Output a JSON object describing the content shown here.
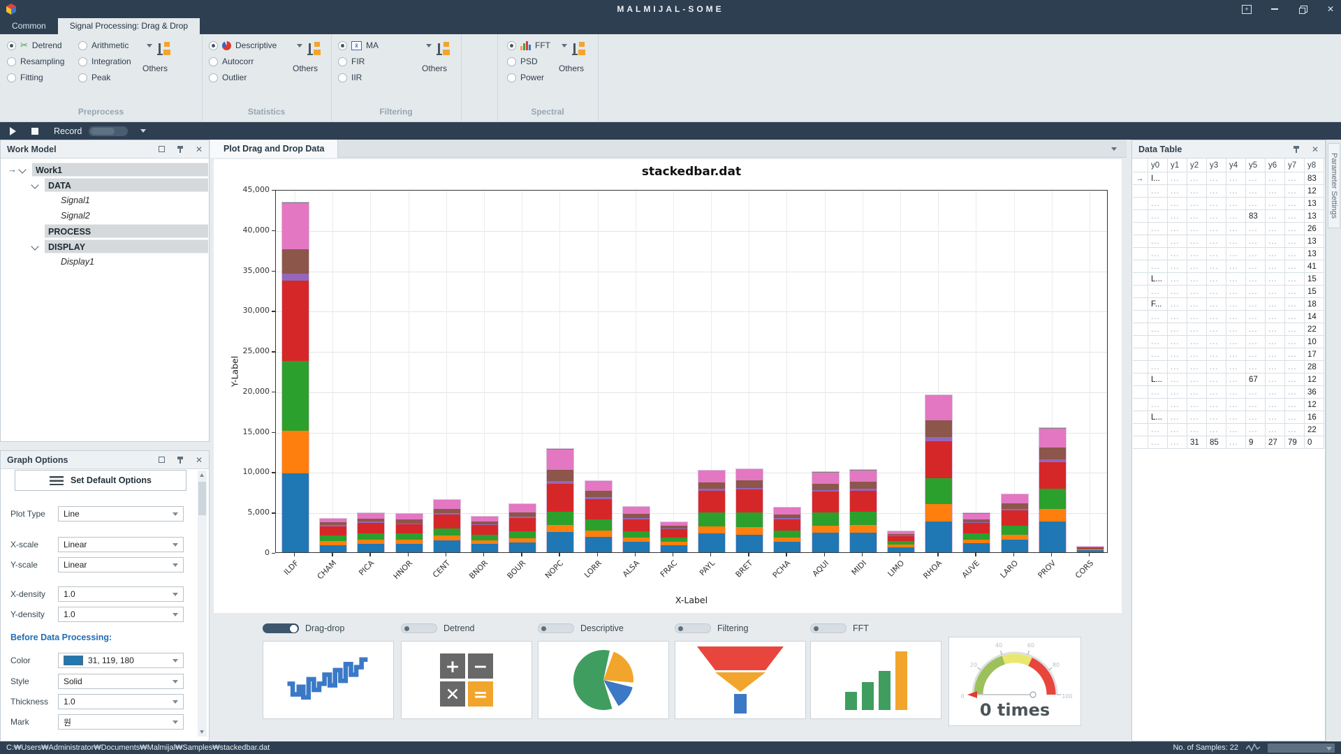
{
  "titlebar": {
    "title": "MALMIJAL-SOME"
  },
  "tabs": [
    {
      "label": "Common",
      "active": false
    },
    {
      "label": "Signal Processing: Drag & Drop",
      "active": true
    }
  ],
  "ribbon": {
    "preprocess": {
      "label": "Preprocess",
      "others": "Others",
      "items": [
        "Detrend",
        "Arithmetic",
        "Resampling",
        "Integration",
        "Fitting",
        "Peak"
      ],
      "selected": "Detrend"
    },
    "statistics": {
      "label": "Statistics",
      "others": "Others",
      "items": [
        "Descriptive",
        "Autocorr",
        "Outlier"
      ],
      "selected": "Descriptive"
    },
    "filtering": {
      "label": "Filtering",
      "others": "Others",
      "items": [
        "MA",
        "FIR",
        "IIR"
      ],
      "selected": "MA"
    },
    "spectral": {
      "label": "Spectral",
      "others": "Others",
      "items": [
        "FFT",
        "PSD",
        "Power"
      ],
      "selected": "FFT"
    }
  },
  "icons": {
    "detrend": "scissors-icon",
    "descriptive": "pie-icon",
    "ma": "x-bar-icon",
    "fft": "mini-bars-icon",
    "others": "flow-blocks-icon"
  },
  "record_bar": {
    "label": "Record",
    "toggle_on": false
  },
  "work_model": {
    "title": "Work Model",
    "tree": [
      {
        "label": "Work1",
        "bold": true,
        "indent": 0,
        "caret": true,
        "arrow": true
      },
      {
        "label": "DATA",
        "bold": true,
        "indent": 1,
        "caret": true
      },
      {
        "label": "Signal1",
        "italic": true,
        "indent": 2
      },
      {
        "label": "Signal2",
        "italic": true,
        "indent": 2
      },
      {
        "label": "PROCESS",
        "bold": true,
        "indent": 1
      },
      {
        "label": "DISPLAY",
        "bold": true,
        "indent": 1,
        "caret": true
      },
      {
        "label": "Display1",
        "italic": true,
        "indent": 2
      }
    ]
  },
  "graph_options": {
    "title": "Graph Options",
    "default_button": "Set Default Options",
    "fields": [
      {
        "label": "Plot Type",
        "value": "Line"
      },
      {
        "label": "X-scale",
        "value": "Linear"
      },
      {
        "label": "Y-scale",
        "value": "Linear"
      },
      {
        "label": "X-density",
        "value": "1.0"
      },
      {
        "label": "Y-density",
        "value": "1.0"
      }
    ],
    "section_header": "Before Data Processing:",
    "processing_fields": [
      {
        "label": "Color",
        "value": "31, 119, 180",
        "swatch": "#1f77b4"
      },
      {
        "label": "Style",
        "value": "Solid"
      },
      {
        "label": "Thickness",
        "value": "1.0"
      },
      {
        "label": "Mark",
        "value": "원"
      }
    ]
  },
  "plot_panel": {
    "tab": "Plot Drag and Drop Data"
  },
  "chart_data": {
    "type": "bar",
    "stacked": true,
    "title": "stackedbar.dat",
    "xlabel": "X-Label",
    "ylabel": "Y-Label",
    "ylim": [
      0,
      45000
    ],
    "ytick_step": 5000,
    "grid": true,
    "categories": [
      "ILDF",
      "CHAM",
      "PICA",
      "HNOR",
      "CENT",
      "BNOR",
      "BOUR",
      "NOPC",
      "LORR",
      "ALSA",
      "FRAC",
      "PAYL",
      "BRET",
      "PCHA",
      "AQUI",
      "MIDI",
      "LIMO",
      "RHOA",
      "AUVE",
      "LARO",
      "PROV",
      "CORS"
    ],
    "series": [
      {
        "name": "y1",
        "color": "#1f77b4",
        "values": [
          9800,
          900,
          1000,
          1050,
          1450,
          1000,
          1200,
          2500,
          1900,
          1300,
          900,
          2300,
          2200,
          1300,
          2400,
          2400,
          650,
          3850,
          1100,
          1600,
          3850,
          300
        ]
      },
      {
        "name": "y2",
        "color": "#ff7f0e",
        "values": [
          5300,
          500,
          550,
          500,
          600,
          450,
          550,
          900,
          800,
          500,
          400,
          900,
          950,
          550,
          900,
          950,
          300,
          2150,
          450,
          600,
          1500,
          31
        ]
      },
      {
        "name": "y3",
        "color": "#2ca02c",
        "values": [
          8600,
          700,
          800,
          750,
          900,
          700,
          850,
          1600,
          1400,
          800,
          550,
          1700,
          1800,
          850,
          1600,
          1700,
          400,
          3200,
          750,
          1100,
          2500,
          85
        ]
      },
      {
        "name": "y4",
        "color": "#d62728",
        "values": [
          10000,
          1100,
          1300,
          1200,
          1700,
          1200,
          1600,
          3500,
          2500,
          1500,
          1000,
          2700,
          2800,
          1400,
          2600,
          2600,
          650,
          4550,
          1300,
          1900,
          3350,
          150
        ]
      },
      {
        "name": "y5",
        "color": "#9467bd",
        "values": [
          800,
          150,
          150,
          83,
          200,
          120,
          180,
          350,
          250,
          150,
          100,
          250,
          250,
          150,
          250,
          250,
          67,
          550,
          120,
          200,
          300,
          9
        ]
      },
      {
        "name": "y6",
        "color": "#8c564b",
        "values": [
          3100,
          350,
          400,
          500,
          550,
          380,
          570,
          1400,
          800,
          500,
          300,
          850,
          900,
          450,
          750,
          850,
          183,
          2100,
          380,
          650,
          1470,
          27
        ]
      },
      {
        "name": "y7",
        "color": "#e377c2",
        "values": [
          5700,
          450,
          650,
          667,
          1100,
          550,
          1000,
          2500,
          1200,
          900,
          450,
          1400,
          1400,
          850,
          1400,
          1400,
          350,
          3050,
          700,
          1100,
          2380,
          79
        ]
      },
      {
        "name": "y8",
        "color": "#7f7f7f",
        "values": [
          83,
          12,
          13,
          13,
          26,
          13,
          13,
          41,
          15,
          15,
          18,
          14,
          22,
          10,
          17,
          28,
          12,
          36,
          12,
          16,
          22,
          0
        ]
      }
    ]
  },
  "toggles": [
    {
      "label": "Drag-drop",
      "on": true
    },
    {
      "label": "Detrend",
      "on": false
    },
    {
      "label": "Descriptive",
      "on": false
    },
    {
      "label": "Filtering",
      "on": false
    },
    {
      "label": "FFT",
      "on": false
    }
  ],
  "gauge": {
    "value_label": "0 times",
    "ticks": [
      "0",
      "20",
      "40",
      "60",
      "80",
      "100"
    ]
  },
  "data_table": {
    "title": "Data Table",
    "columns": [
      "y0",
      "y1",
      "y2",
      "y3",
      "y4",
      "y5",
      "y6",
      "y7",
      "y8"
    ],
    "rows": [
      [
        "I...",
        "...",
        "...",
        "...",
        "...",
        "...",
        "...",
        "...",
        "83"
      ],
      [
        "...",
        "...",
        "...",
        "...",
        "...",
        "...",
        "...",
        "...",
        "12"
      ],
      [
        "...",
        "...",
        "...",
        "...",
        "...",
        "...",
        "...",
        "...",
        "13"
      ],
      [
        "...",
        "...",
        "...",
        "...",
        "...",
        "83",
        "...",
        "...",
        "13"
      ],
      [
        "...",
        "...",
        "...",
        "...",
        "...",
        "...",
        "...",
        "...",
        "26"
      ],
      [
        "...",
        "...",
        "...",
        "...",
        "...",
        "...",
        "...",
        "...",
        "13"
      ],
      [
        "...",
        "...",
        "...",
        "...",
        "...",
        "...",
        "...",
        "...",
        "13"
      ],
      [
        "...",
        "...",
        "...",
        "...",
        "...",
        "...",
        "...",
        "...",
        "41"
      ],
      [
        "L...",
        "...",
        "...",
        "...",
        "...",
        "...",
        "...",
        "...",
        "15"
      ],
      [
        "...",
        "...",
        "...",
        "...",
        "...",
        "...",
        "...",
        "...",
        "15"
      ],
      [
        "F...",
        "...",
        "...",
        "...",
        "...",
        "...",
        "...",
        "...",
        "18"
      ],
      [
        "...",
        "...",
        "...",
        "...",
        "...",
        "...",
        "...",
        "...",
        "14"
      ],
      [
        "...",
        "...",
        "...",
        "...",
        "...",
        "...",
        "...",
        "...",
        "22"
      ],
      [
        "...",
        "...",
        "...",
        "...",
        "...",
        "...",
        "...",
        "...",
        "10"
      ],
      [
        "...",
        "...",
        "...",
        "...",
        "...",
        "...",
        "...",
        "...",
        "17"
      ],
      [
        "...",
        "...",
        "...",
        "...",
        "...",
        "...",
        "...",
        "...",
        "28"
      ],
      [
        "L...",
        "...",
        "...",
        "...",
        "...",
        "67",
        "...",
        "...",
        "12"
      ],
      [
        "...",
        "...",
        "...",
        "...",
        "...",
        "...",
        "...",
        "...",
        "36"
      ],
      [
        "...",
        "...",
        "...",
        "...",
        "...",
        "...",
        "...",
        "...",
        "12"
      ],
      [
        "L...",
        "...",
        "...",
        "...",
        "...",
        "...",
        "...",
        "...",
        "16"
      ],
      [
        "...",
        "...",
        "...",
        "...",
        "...",
        "...",
        "...",
        "...",
        "22"
      ],
      [
        "...",
        "...",
        "31",
        "85",
        "...",
        "9",
        "27",
        "79",
        "0"
      ]
    ]
  },
  "parameter_tab": "Parameter Settings",
  "statusbar": {
    "path": "C:₩Users₩Administrator₩Documents₩Malmijal₩Samples₩stackedbar.dat",
    "samples_label": "No. of Samples: 22"
  },
  "colors": {
    "chrome_navy": "#2e3f52",
    "ribbon_bg": "#e4e9ec",
    "accent_blue": "#1f77b4",
    "toggle_on": "#3d566e"
  }
}
